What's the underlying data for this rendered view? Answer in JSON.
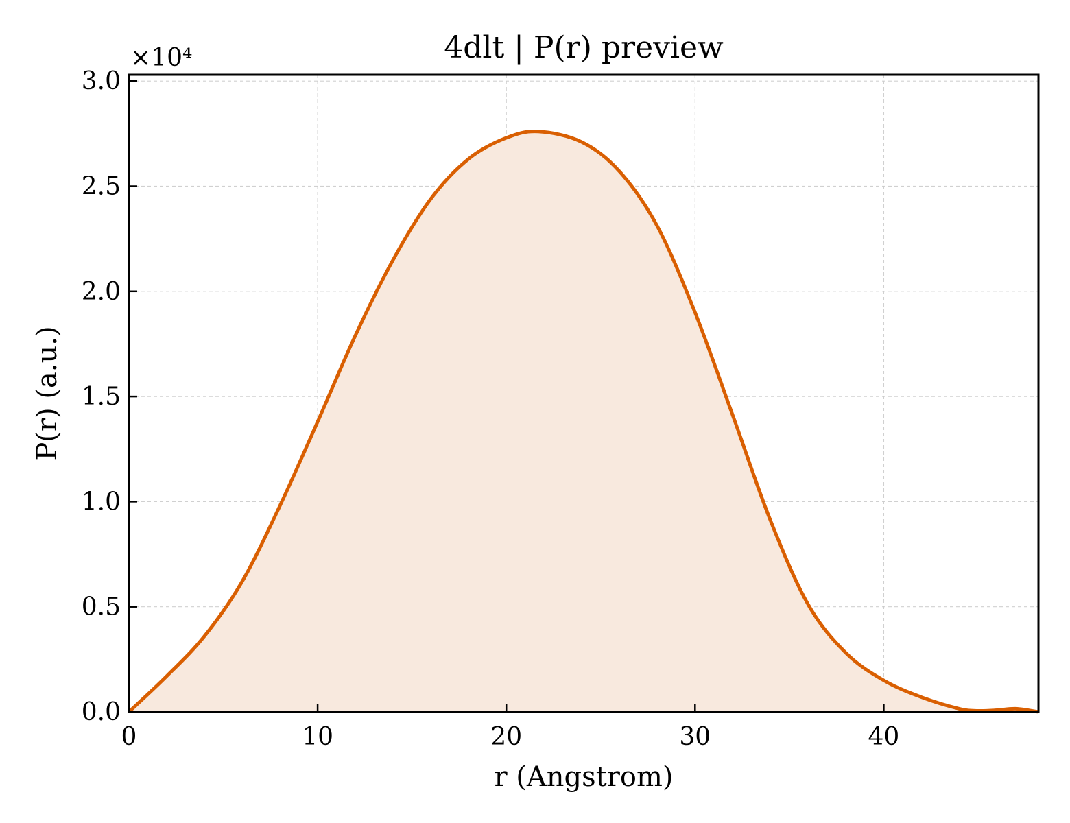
{
  "chart_data": {
    "type": "area",
    "title": "4dlt | P(r) preview",
    "xlabel": "r (Angstrom)",
    "ylabel": "P(r) (a.u.)",
    "y_multiplier_label": "×10⁴",
    "y_scale": 10000,
    "xlim": [
      0,
      48.2
    ],
    "ylim": [
      0,
      30300
    ],
    "xticks": [
      0,
      10,
      20,
      30,
      40
    ],
    "xtick_labels": [
      "0",
      "10",
      "20",
      "30",
      "40"
    ],
    "yticks": [
      0,
      5000,
      10000,
      15000,
      20000,
      25000,
      30000
    ],
    "ytick_labels": [
      "0.0",
      "0.5",
      "1.0",
      "1.5",
      "2.0",
      "2.5",
      "3.0"
    ],
    "grid": true,
    "series": [
      {
        "color": "#d95f02",
        "fill_color": "#f8e9de",
        "x": [
          0,
          2,
          4,
          6,
          8,
          10,
          12,
          14,
          16,
          18,
          20,
          21.7,
          24,
          26,
          28,
          30,
          32,
          34,
          36,
          38,
          40,
          42,
          44,
          45,
          46,
          47,
          48.2
        ],
        "y": [
          0,
          1700,
          3600,
          6200,
          9800,
          13800,
          17900,
          21500,
          24400,
          26300,
          27300,
          27600,
          27100,
          25700,
          23100,
          19000,
          14100,
          9100,
          5100,
          2800,
          1500,
          700,
          150,
          50,
          80,
          150,
          0
        ]
      }
    ]
  }
}
